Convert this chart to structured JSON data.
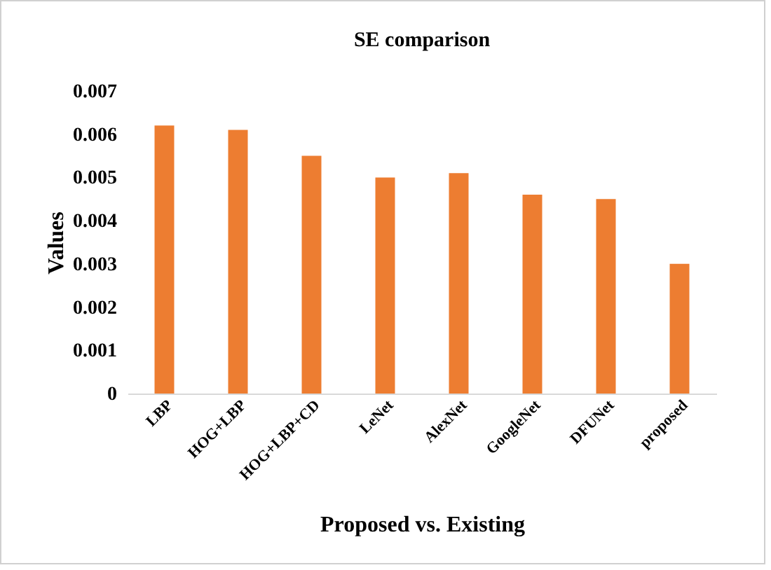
{
  "chart_data": {
    "type": "bar",
    "title": "SE comparison",
    "xlabel": "Proposed vs. Existing",
    "ylabel": "Values",
    "categories": [
      "LBP",
      "HOG+LBP",
      "HOG+LBP+CD",
      "LeNet",
      "AlexNet",
      "GoogleNet",
      "DFUNet",
      "proposed"
    ],
    "values": [
      0.0062,
      0.0061,
      0.0055,
      0.005,
      0.0051,
      0.0046,
      0.0045,
      0.003
    ],
    "color": "#ed7d31",
    "ylim": [
      0,
      0.007
    ],
    "yticks": [
      0,
      0.001,
      0.002,
      0.003,
      0.004,
      0.005,
      0.006,
      0.007
    ],
    "grid": false
  }
}
